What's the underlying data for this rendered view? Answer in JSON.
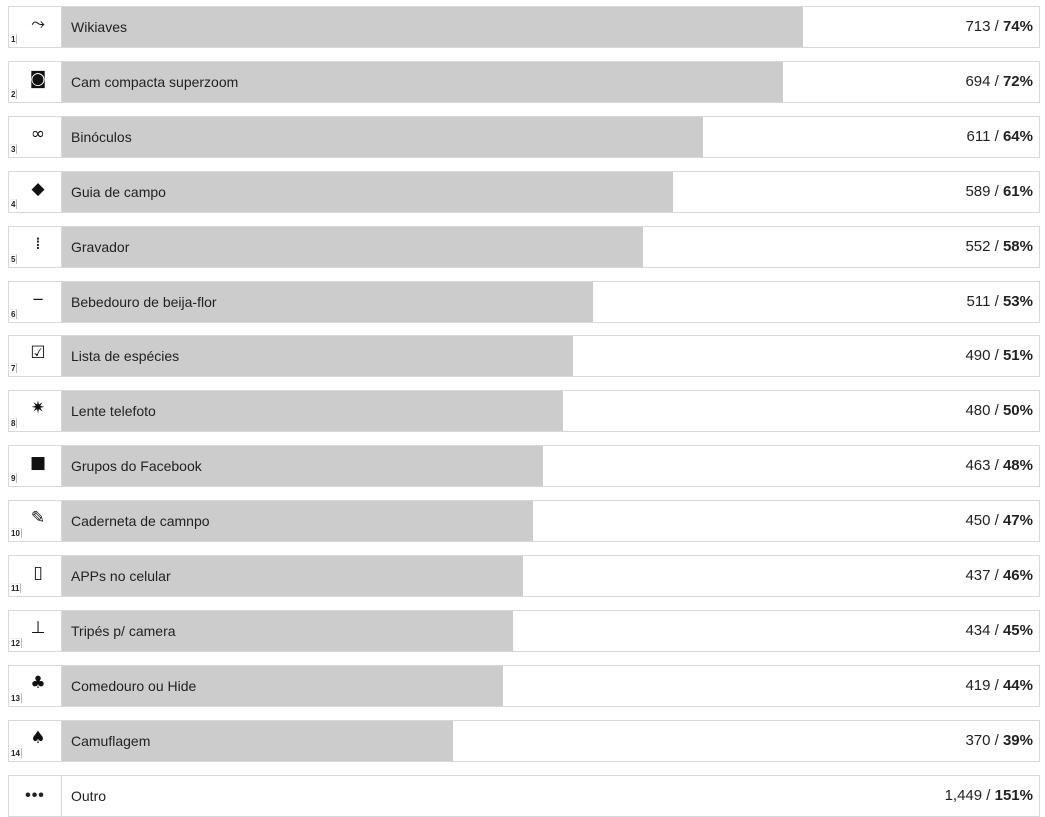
{
  "chart_data": {
    "type": "bar",
    "orientation": "horizontal",
    "categories": [
      "Wikiaves",
      "Cam compacta superzoom",
      "Binóculos",
      "Guia de campo",
      "Gravador",
      "Bebedouro de beija-flor",
      "Lista de espécies",
      "Lente telefoto",
      "Grupos do Facebook",
      "Caderneta de camnpo",
      "APPs no celular",
      "Tripés p/ camera",
      "Comedouro ou Hide",
      "Camuflagem",
      "Outro"
    ],
    "values": [
      713,
      694,
      611,
      589,
      552,
      511,
      490,
      480,
      463,
      450,
      437,
      434,
      419,
      370,
      1449
    ],
    "value_labels": [
      "713",
      "694",
      "611",
      "589",
      "552",
      "511",
      "490",
      "480",
      "463",
      "450",
      "437",
      "434",
      "419",
      "370",
      "1,449"
    ],
    "percent_labels": [
      "74%",
      "72%",
      "64%",
      "61%",
      "58%",
      "53%",
      "51%",
      "50%",
      "48%",
      "47%",
      "46%",
      "45%",
      "44%",
      "39%",
      "151%"
    ],
    "percent_values": [
      74,
      72,
      64,
      61,
      58,
      53,
      51,
      50,
      48,
      47,
      46,
      45,
      44,
      39,
      151
    ],
    "ranks": [
      "1",
      "2",
      "3",
      "4",
      "5",
      "6",
      "7",
      "8",
      "9",
      "10",
      "11",
      "12",
      "13",
      "14",
      "•••"
    ],
    "separator": " / ",
    "icons": [
      "bird-on-branch-icon",
      "camera-icon",
      "binoculars-icon",
      "book-icon",
      "recorder-icon",
      "feeder-icon",
      "checklist-icon",
      "telephoto-lens-icon",
      "facebook-icon",
      "notebook-icon",
      "phone-app-icon",
      "tripod-icon",
      "bird-feeder-icon",
      "camouflage-icon",
      "more-icon"
    ],
    "bar_color": "#cccccc"
  }
}
